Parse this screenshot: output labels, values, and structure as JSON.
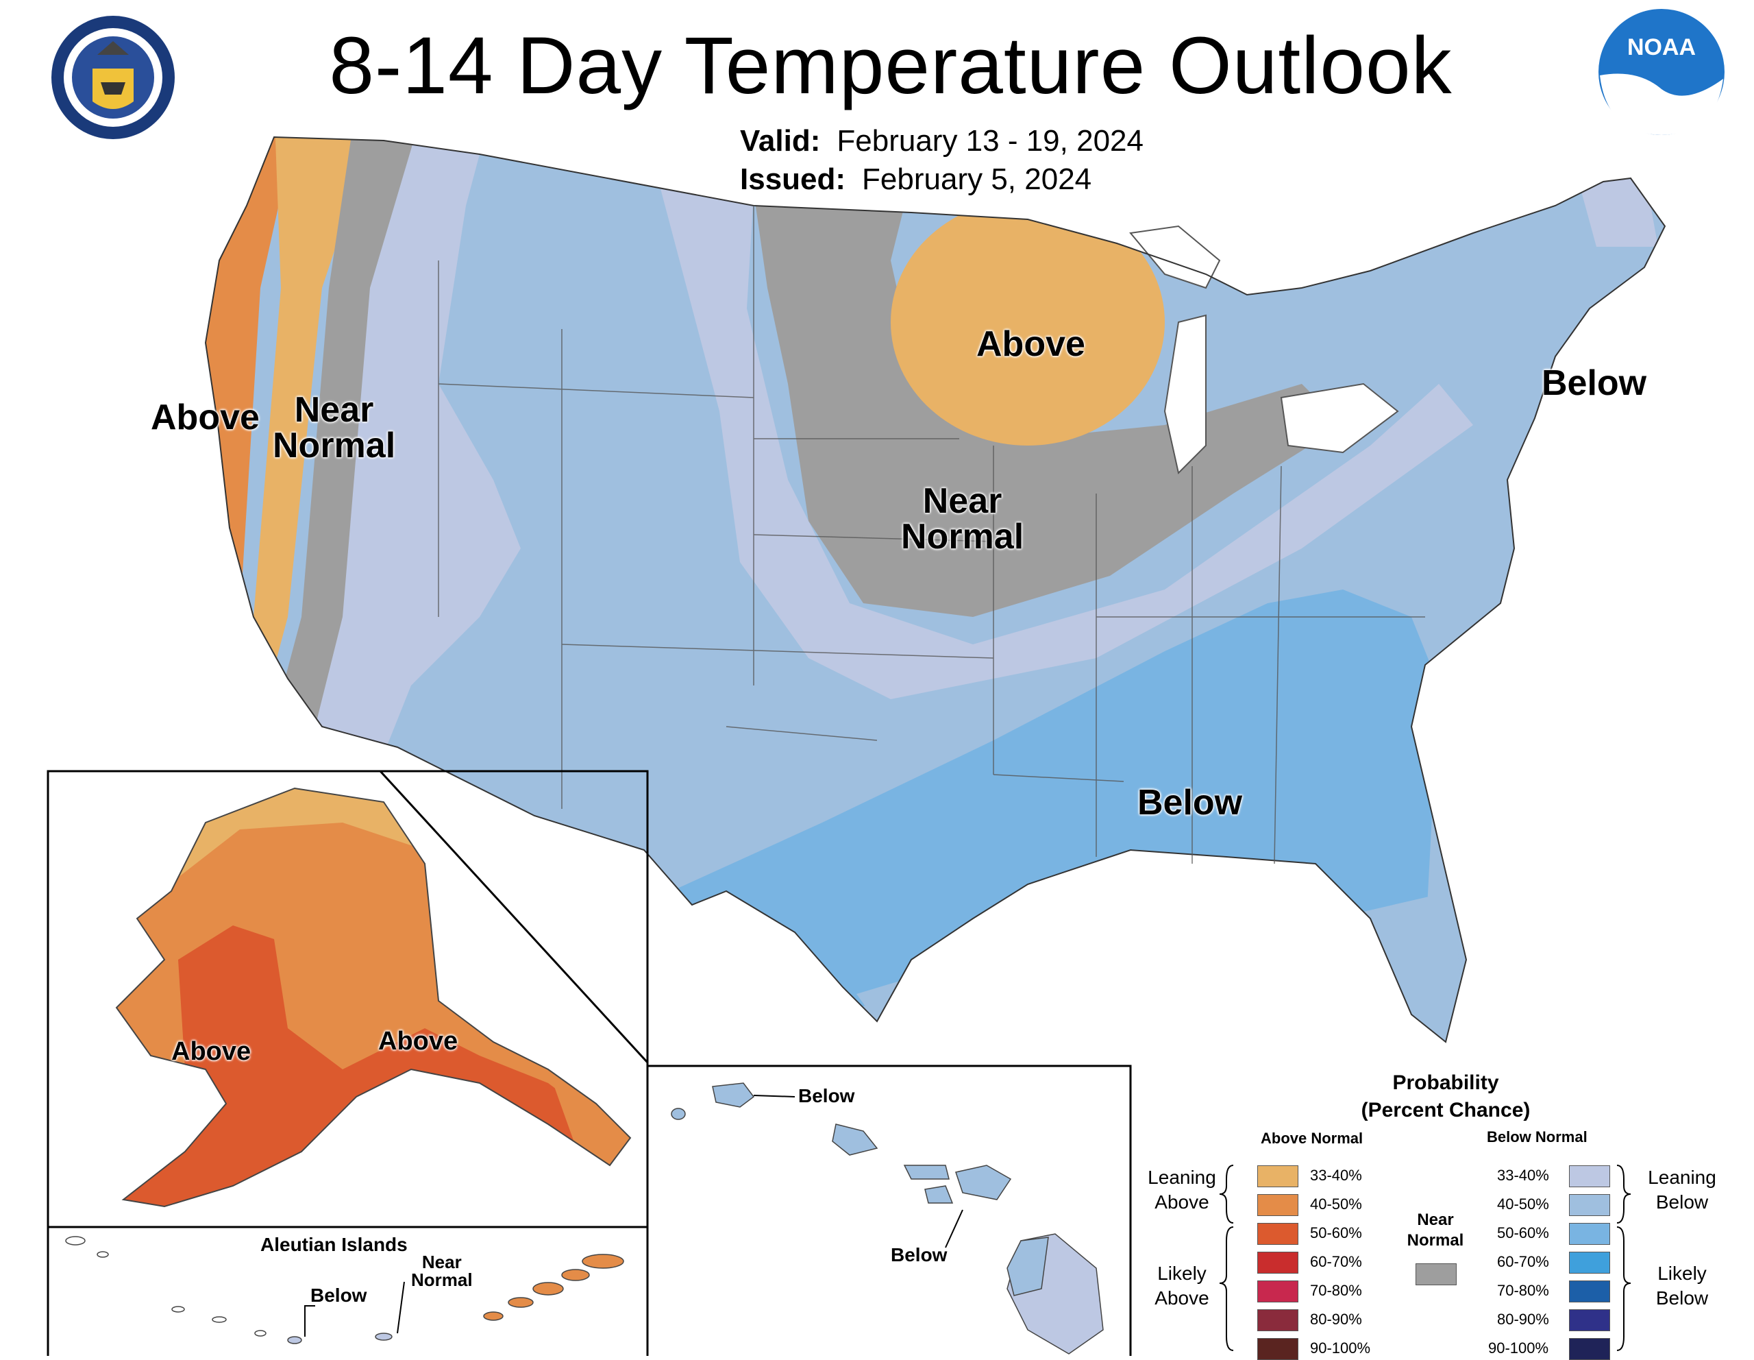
{
  "title": "8-14 Day Temperature Outlook",
  "valid_label": "Valid:",
  "valid_value": "February 13 - 19, 2024",
  "issued_label": "Issued:",
  "issued_value": "February 5, 2024",
  "logos": {
    "left": "department-of-commerce-seal",
    "right": "noaa-logo"
  },
  "regions": {
    "west_above": "Above",
    "west_near_1": "Near",
    "west_near_2": "Normal",
    "midwest_above": "Above",
    "central_near_1": "Near",
    "central_near_2": "Normal",
    "northeast_below": "Below",
    "southeast_below": "Below",
    "alaska_above_west": "Above",
    "alaska_above_south": "Above",
    "aleutian_title": "Aleutian Islands",
    "aleutian_below": "Below",
    "aleutian_near_1": "Near",
    "aleutian_near_2": "Normal",
    "hawaii_below_1": "Below",
    "hawaii_below_2": "Below"
  },
  "legend": {
    "title_1": "Probability",
    "title_2": "(Percent Chance)",
    "above_header": "Above Normal",
    "below_header": "Below Normal",
    "near_label_1": "Near",
    "near_label_2": "Normal",
    "leaning_above_1": "Leaning",
    "leaning_above_2": "Above",
    "likely_above_1": "Likely",
    "likely_above_2": "Above",
    "leaning_below_1": "Leaning",
    "leaning_below_2": "Below",
    "likely_below_1": "Likely",
    "likely_below_2": "Below",
    "above": [
      {
        "range": "33-40%",
        "color": "#e8b266"
      },
      {
        "range": "40-50%",
        "color": "#e48c48"
      },
      {
        "range": "50-60%",
        "color": "#dc5a2e"
      },
      {
        "range": "60-70%",
        "color": "#c92d2d"
      },
      {
        "range": "70-80%",
        "color": "#c8284e"
      },
      {
        "range": "80-90%",
        "color": "#8a2b3c"
      },
      {
        "range": "90-100%",
        "color": "#5a2420"
      }
    ],
    "below": [
      {
        "range": "33-40%",
        "color": "#bdc8e3"
      },
      {
        "range": "40-50%",
        "color": "#9fbfdf"
      },
      {
        "range": "50-60%",
        "color": "#79b4e2"
      },
      {
        "range": "60-70%",
        "color": "#3fa0dc"
      },
      {
        "range": "70-80%",
        "color": "#1c5fa8"
      },
      {
        "range": "80-90%",
        "color": "#2f3189"
      },
      {
        "range": "90-100%",
        "color": "#1f2358"
      }
    ],
    "near_color": "#9e9e9e"
  }
}
